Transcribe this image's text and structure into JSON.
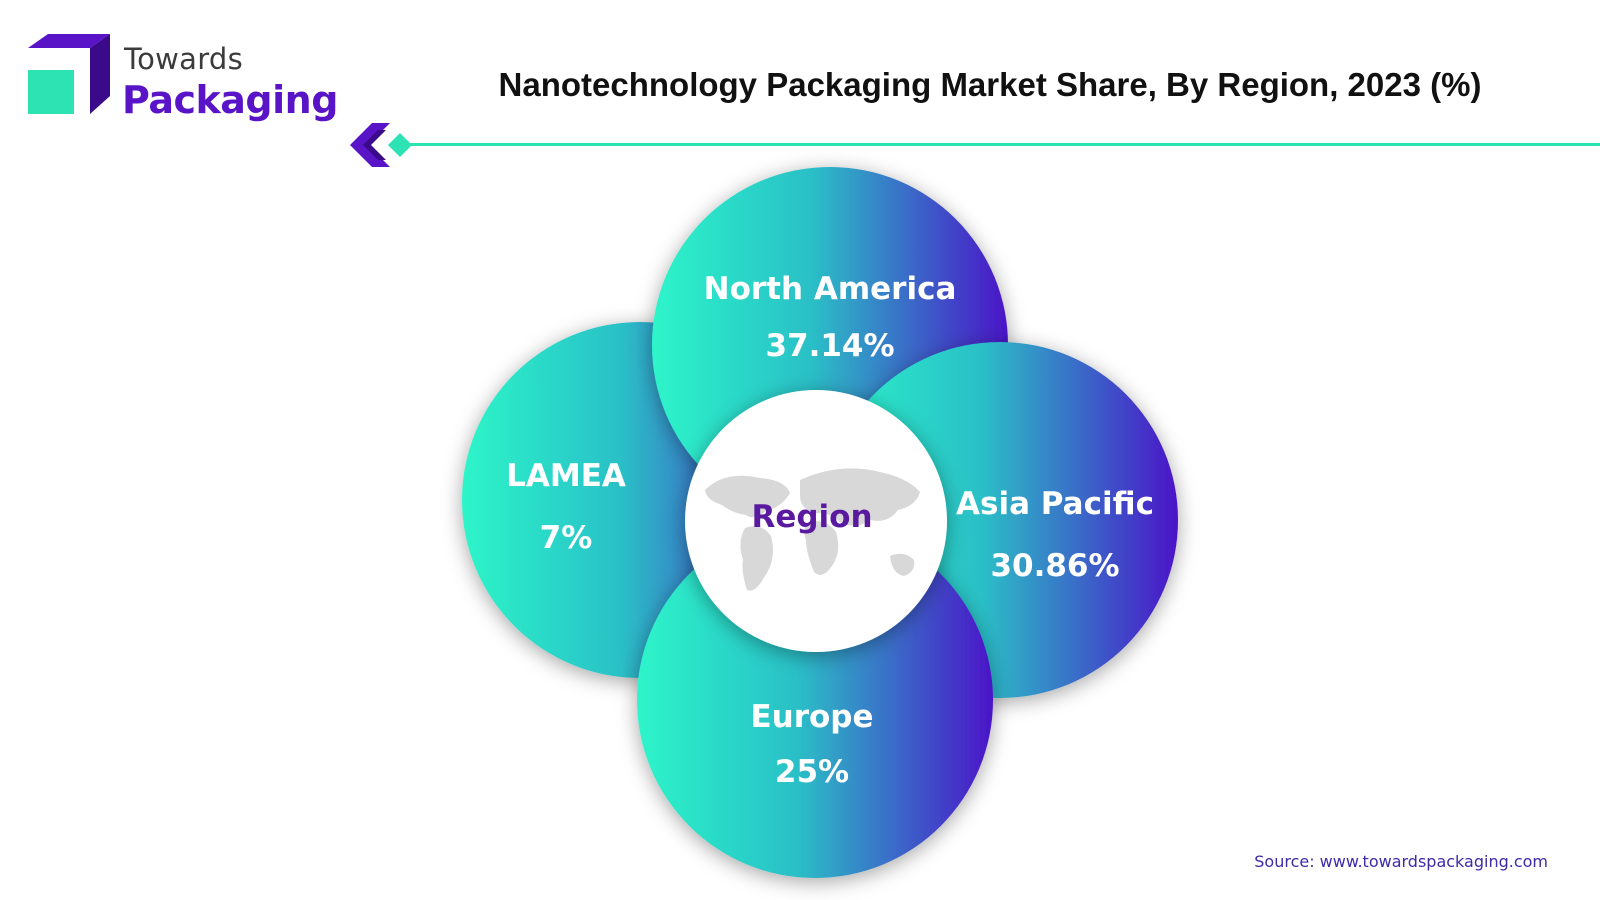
{
  "logo": {
    "line1": "Towards",
    "line2": "Packaging",
    "colors": {
      "purple": "#5a14c8",
      "dark_purple": "#3a0a8a",
      "teal": "#2de3b3"
    }
  },
  "title": "Nanotechnology Packaging Market Share, By Region, 2023 (%)",
  "source": "Source: www.towardspackaging.com",
  "chart_data": {
    "type": "pie",
    "title": "Nanotechnology Packaging Market Share, By Region, 2023 (%)",
    "center_label": "Region",
    "categories": [
      "North America",
      "Asia Pacific",
      "Europe",
      "LAMEA"
    ],
    "values": [
      37.14,
      30.86,
      25,
      7
    ],
    "value_labels": [
      "37.14%",
      "30.86%",
      "25%",
      "7%"
    ],
    "gradient": {
      "start": "#2df5c9",
      "end": "#4a14c8"
    }
  }
}
